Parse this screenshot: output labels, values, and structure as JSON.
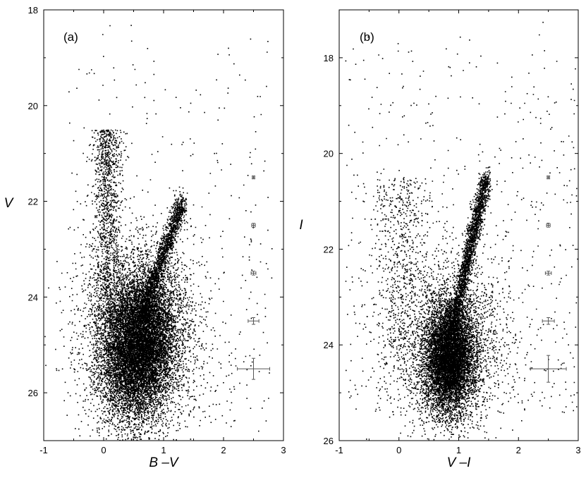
{
  "figure": {
    "background": "#ffffff",
    "ink": "#000000",
    "errorbar_color": "#555555"
  },
  "chart_data": [
    {
      "type": "scatter",
      "panel_label": "(a)",
      "xlabel": "B –V",
      "ylabel": "V",
      "xlim": [
        -1,
        3
      ],
      "ylim": [
        27,
        18
      ],
      "y_inverted": true,
      "xticks": [
        -1,
        0,
        1,
        2,
        3
      ],
      "yticks": [
        18,
        20,
        22,
        24,
        26
      ],
      "grid": false,
      "legend": "none",
      "density_structure": {
        "main_sequence_turnoff": {
          "x": 0.6,
          "y": 24.8
        },
        "blue_plume": {
          "x": 0.05,
          "y_range": [
            20.5,
            26
          ]
        },
        "red_giant_branch": {
          "from": [
            0.6,
            24.5
          ],
          "to": [
            1.3,
            22.0
          ]
        },
        "field_stars": {
          "x_range": [
            -0.6,
            2.8
          ],
          "y_range": [
            18.2,
            26.8
          ]
        }
      },
      "error_bars": [
        {
          "x": 2.5,
          "y": 21.5,
          "x_err": 0.02,
          "y_err": 0.03
        },
        {
          "x": 2.5,
          "y": 22.5,
          "x_err": 0.03,
          "y_err": 0.04
        },
        {
          "x": 2.5,
          "y": 23.5,
          "x_err": 0.04,
          "y_err": 0.04
        },
        {
          "x": 2.5,
          "y": 24.5,
          "x_err": 0.09,
          "y_err": 0.07
        },
        {
          "x": 2.5,
          "y": 25.5,
          "x_err": 0.27,
          "y_err": 0.22
        }
      ]
    },
    {
      "type": "scatter",
      "panel_label": "(b)",
      "xlabel": "V –I",
      "ylabel": "I",
      "xlim": [
        -1,
        3
      ],
      "ylim": [
        26,
        17
      ],
      "y_inverted": true,
      "xticks": [
        -1,
        0,
        1,
        2,
        3
      ],
      "yticks": [
        18,
        20,
        22,
        24,
        26
      ],
      "grid": false,
      "legend": "none",
      "density_structure": {
        "main_sequence_turnoff": {
          "x": 0.85,
          "y": 24.0
        },
        "blue_plume": {
          "x": 0.05,
          "y_range": [
            20.5,
            25
          ]
        },
        "red_giant_branch": {
          "from": [
            0.85,
            23.8
          ],
          "to": [
            1.45,
            20.5
          ]
        },
        "field_stars": {
          "x_range": [
            -0.9,
            3.0
          ],
          "y_range": [
            17.2,
            25.4
          ]
        }
      },
      "error_bars": [
        {
          "x": 2.5,
          "y": 20.5,
          "x_err": 0.02,
          "y_err": 0.03
        },
        {
          "x": 2.5,
          "y": 21.5,
          "x_err": 0.03,
          "y_err": 0.04
        },
        {
          "x": 2.5,
          "y": 22.5,
          "x_err": 0.05,
          "y_err": 0.04
        },
        {
          "x": 2.5,
          "y": 23.5,
          "x_err": 0.1,
          "y_err": 0.07
        },
        {
          "x": 2.5,
          "y": 24.5,
          "x_err": 0.3,
          "y_err": 0.28
        }
      ]
    }
  ]
}
